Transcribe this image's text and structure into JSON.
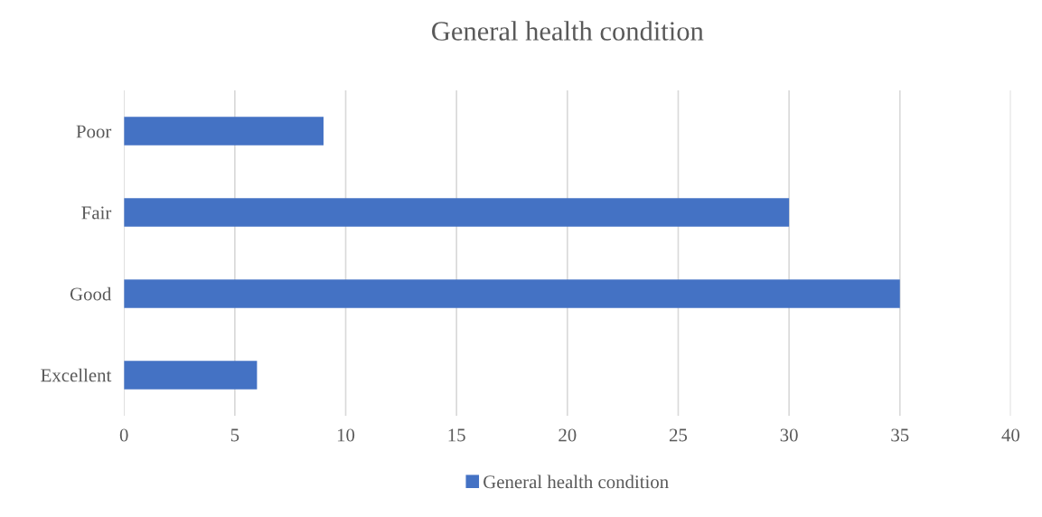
{
  "chart_data": {
    "type": "bar",
    "orientation": "horizontal",
    "title": "General health condition",
    "categories": [
      "Poor",
      "Fair",
      "Good",
      "Excellent"
    ],
    "series": [
      {
        "name": "General health condition",
        "color": "#4472c4",
        "values": [
          9,
          30,
          35,
          6
        ]
      }
    ],
    "xlim": [
      0,
      40
    ],
    "xticks": [
      0,
      5,
      10,
      15,
      20,
      25,
      30,
      35,
      40
    ],
    "grid": "x",
    "legend": "bottom"
  }
}
